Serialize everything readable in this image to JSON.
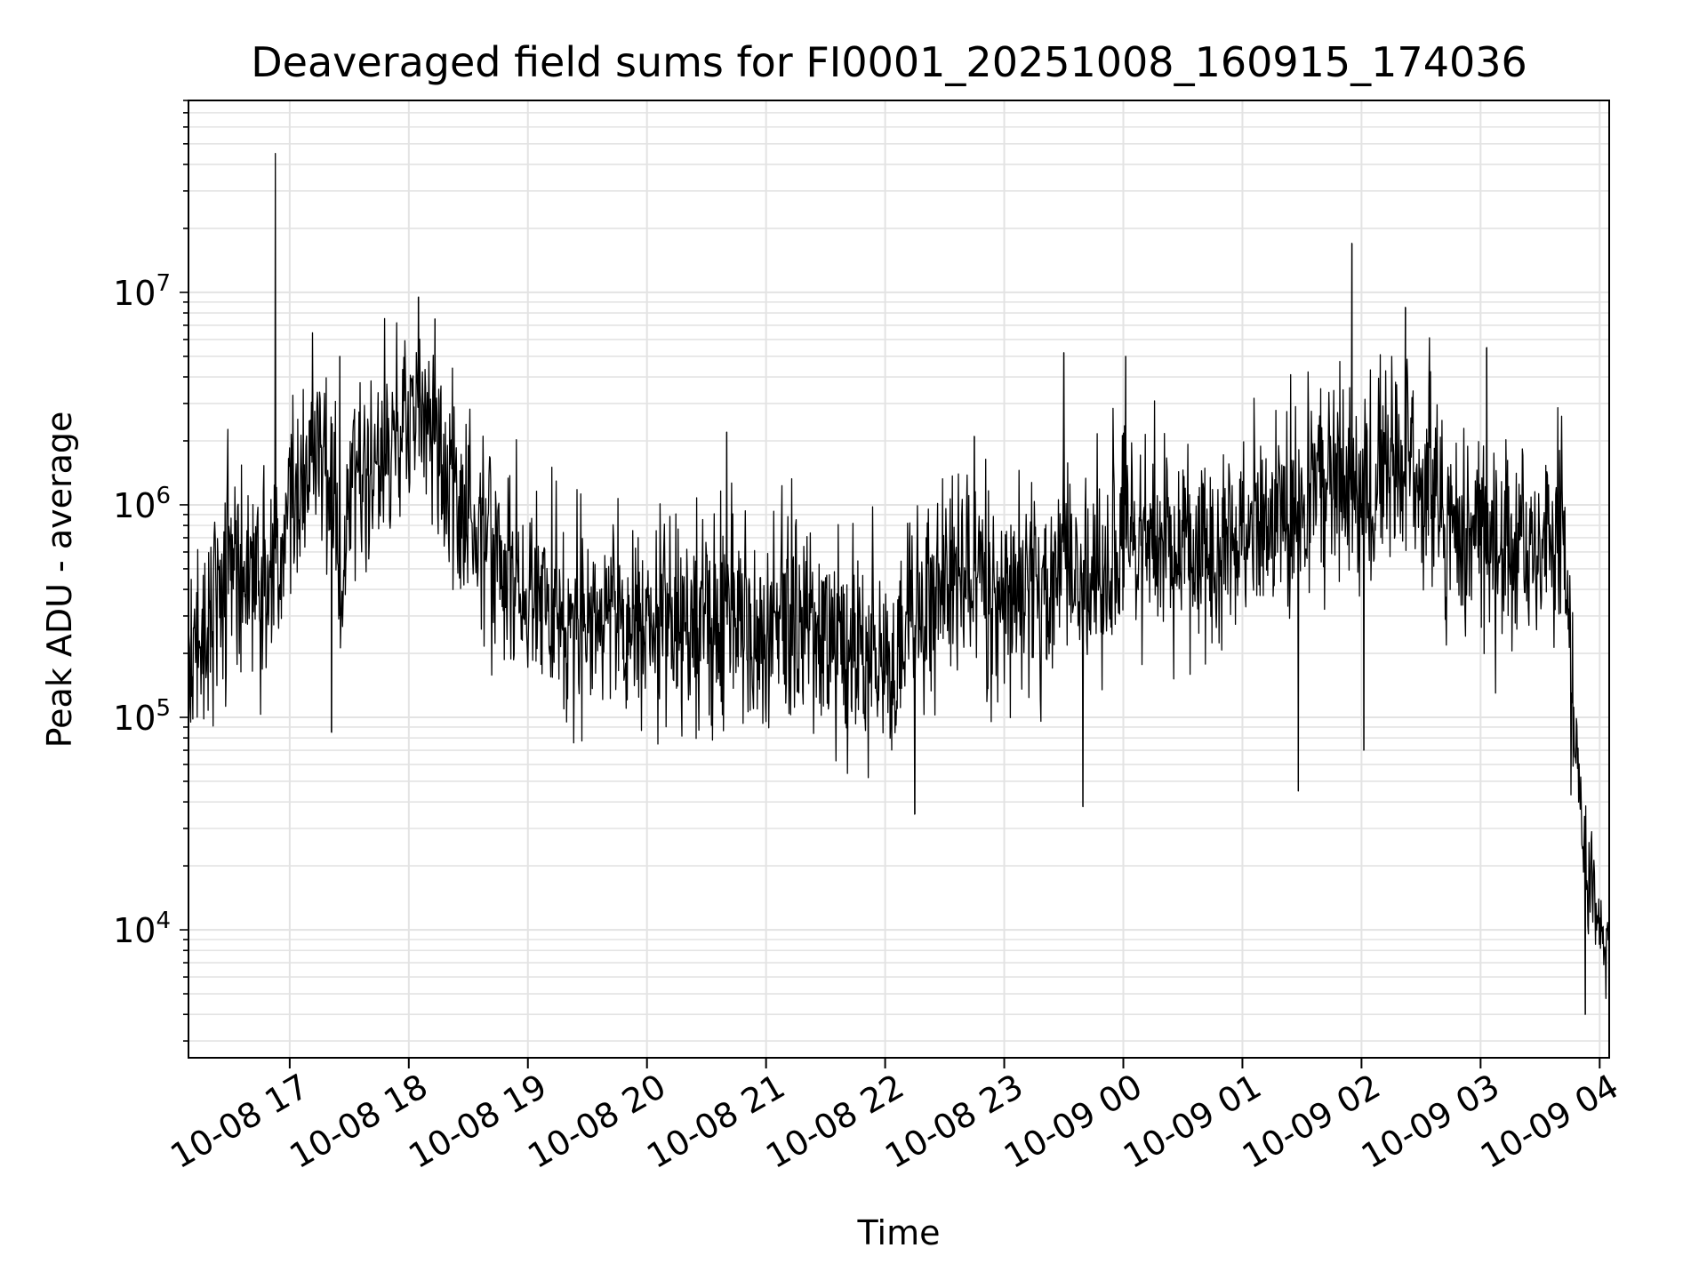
{
  "chart_data": {
    "type": "line",
    "title": "Deaveraged field sums for FI0001_20251008_160915_174036",
    "xlabel": "Time",
    "ylabel": "Peak ADU - average",
    "yscale": "log",
    "ylim": [
      2500,
      80000000
    ],
    "xlim_hours": [
      16.15,
      28.08
    ],
    "grid": true,
    "line_color": "#000000",
    "x_ticks": [
      {
        "hour": 17,
        "label": "10-08 17"
      },
      {
        "hour": 18,
        "label": "10-08 18"
      },
      {
        "hour": 19,
        "label": "10-08 19"
      },
      {
        "hour": 20,
        "label": "10-08 20"
      },
      {
        "hour": 21,
        "label": "10-08 21"
      },
      {
        "hour": 22,
        "label": "10-08 22"
      },
      {
        "hour": 23,
        "label": "10-08 23"
      },
      {
        "hour": 24,
        "label": "10-09 00"
      },
      {
        "hour": 25,
        "label": "10-09 01"
      },
      {
        "hour": 26,
        "label": "10-09 02"
      },
      {
        "hour": 27,
        "label": "10-09 03"
      },
      {
        "hour": 28,
        "label": "10-09 04"
      }
    ],
    "y_ticks": [
      {
        "value": 10000,
        "mantissa": "10",
        "exp": "4"
      },
      {
        "value": 100000,
        "mantissa": "10",
        "exp": "5"
      },
      {
        "value": 1000000,
        "mantissa": "10",
        "exp": "6"
      },
      {
        "value": 10000000,
        "mantissa": "10",
        "exp": "7"
      }
    ],
    "series": [
      {
        "name": "Peak ADU - average",
        "x_hours": [
          16.15,
          16.3,
          16.5,
          16.6,
          16.75,
          16.85,
          16.88,
          16.9,
          17.0,
          17.2,
          17.4,
          17.42,
          17.5,
          17.7,
          17.9,
          18.05,
          18.1,
          18.2,
          18.3,
          18.5,
          18.7,
          18.9,
          19.1,
          19.3,
          19.5,
          19.7,
          20.0,
          20.3,
          20.6,
          20.9,
          21.2,
          21.5,
          21.8,
          21.95,
          22.0,
          22.2,
          22.4,
          22.6,
          22.8,
          23.0,
          23.2,
          23.4,
          23.5,
          23.6,
          23.7,
          23.85,
          24.0,
          24.2,
          24.4,
          24.6,
          24.8,
          25.0,
          25.2,
          25.4,
          25.6,
          25.8,
          25.9,
          26.0,
          26.2,
          26.4,
          26.6,
          26.8,
          27.0,
          27.2,
          27.4,
          27.6,
          27.7,
          27.75,
          27.8,
          27.9,
          28.0,
          28.08
        ],
        "y": [
          150000,
          250000,
          700000,
          600000,
          400000,
          500000,
          45000000,
          500000,
          1200000,
          1500000,
          1300000,
          300000,
          1200000,
          1500000,
          2500000,
          3000000,
          3500000,
          2200000,
          1400000,
          900000,
          600000,
          400000,
          350000,
          300000,
          280000,
          300000,
          300000,
          280000,
          300000,
          280000,
          300000,
          250000,
          200000,
          180000,
          150000,
          250000,
          350000,
          450000,
          500000,
          400000,
          380000,
          350000,
          600000,
          450000,
          500000,
          400000,
          700000,
          600000,
          550000,
          600000,
          650000,
          700000,
          800000,
          900000,
          1200000,
          1300000,
          1100000,
          1400000,
          1500000,
          1800000,
          1100000,
          900000,
          700000,
          700000,
          600000,
          700000,
          800000,
          200000,
          60000,
          20000,
          10000,
          8000
        ]
      }
    ],
    "spikes": [
      {
        "hour": 16.88,
        "value": 45000000
      },
      {
        "hour": 18.08,
        "value": 9500000
      },
      {
        "hour": 18.22,
        "value": 7500000
      },
      {
        "hour": 25.92,
        "value": 17000000
      },
      {
        "hour": 26.37,
        "value": 8500000
      },
      {
        "hour": 27.05,
        "value": 5500000
      },
      {
        "hour": 23.5,
        "value": 5200000
      },
      {
        "hour": 24.02,
        "value": 5000000
      },
      {
        "hour": 20.67,
        "value": 2200000
      },
      {
        "hour": 17.42,
        "value": 5000000
      },
      {
        "hour": 22.75,
        "value": 2100000
      },
      {
        "hour": 25.47,
        "value": 45000
      },
      {
        "hour": 22.25,
        "value": 35000
      },
      {
        "hour": 23.66,
        "value": 38000
      },
      {
        "hour": 26.02,
        "value": 70000
      },
      {
        "hour": 17.35,
        "value": 85000
      },
      {
        "hour": 27.88,
        "value": 4000
      }
    ]
  }
}
